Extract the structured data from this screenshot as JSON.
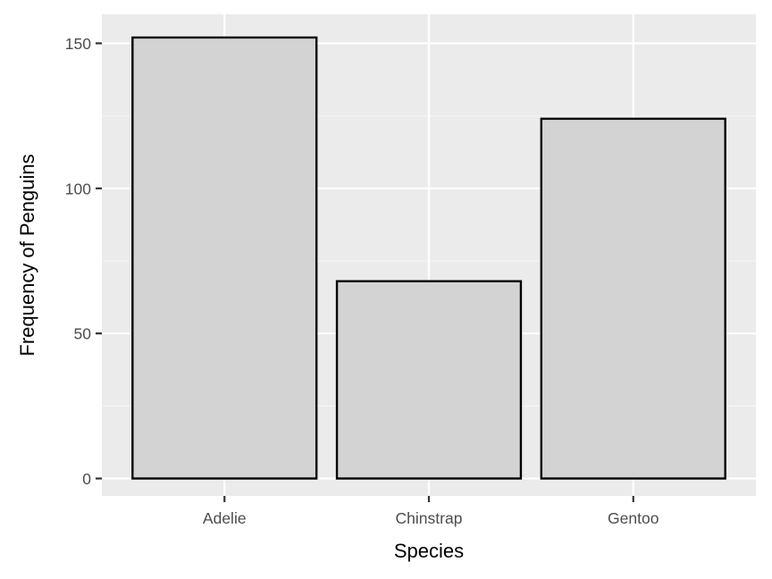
{
  "chart_data": {
    "type": "bar",
    "title": "",
    "xlabel": "Species",
    "ylabel": "Frequency of Penguins",
    "categories": [
      "Adelie",
      "Chinstrap",
      "Gentoo"
    ],
    "values": [
      152,
      68,
      124
    ],
    "ylim": [
      -6,
      160
    ],
    "yticks": [
      0,
      50,
      100,
      150
    ],
    "grid": true,
    "legend": "none",
    "colors": {
      "panel_background": "#ebebeb",
      "grid_major": "#ffffff",
      "grid_minor": "#f5f5f5",
      "bar_fill": "#d3d3d3",
      "bar_outline": "#000000",
      "tick_text": "#4d4d4d",
      "tick_mark": "#333333",
      "axis_title": "#000000"
    }
  }
}
